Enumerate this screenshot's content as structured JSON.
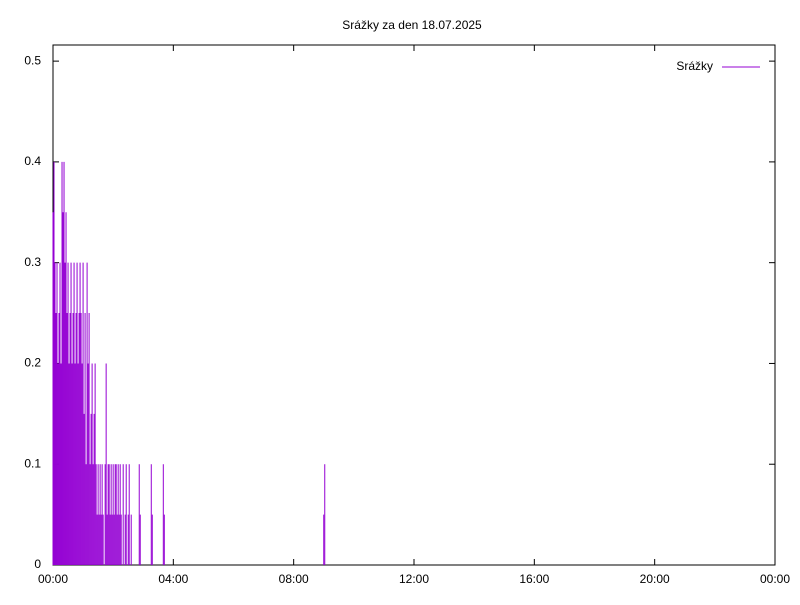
{
  "chart_data": {
    "type": "impulse",
    "title": "Srážky za den 18.07.2025",
    "x": [
      0,
      2,
      4,
      6,
      8,
      10,
      12,
      14,
      16,
      18,
      20,
      22,
      24,
      26,
      28,
      30,
      32,
      34,
      36,
      38,
      40,
      42,
      44,
      46,
      48,
      50,
      52,
      54,
      56,
      58,
      60,
      62,
      64,
      66,
      68,
      70,
      72,
      74,
      76,
      78,
      80,
      82,
      84,
      86,
      88,
      90,
      92,
      94,
      96,
      98,
      100,
      104,
      106,
      108,
      110,
      112,
      114,
      116,
      118,
      120,
      122,
      124,
      126,
      128,
      130,
      132,
      134,
      136,
      140,
      144,
      146,
      150,
      152,
      156,
      172,
      174,
      196,
      198,
      220,
      222,
      540,
      542
    ],
    "series": [
      {
        "name": "Srážky",
        "color": "#9400d3",
        "values": [
          0.35,
          0.4,
          0.3,
          0.25,
          0.3,
          0.2,
          0.25,
          0.3,
          0.2,
          0.4,
          0.35,
          0.4,
          0.3,
          0.35,
          0.25,
          0.3,
          0.2,
          0.25,
          0.3,
          0.2,
          0.25,
          0.3,
          0.2,
          0.25,
          0.3,
          0.2,
          0.25,
          0.3,
          0.25,
          0.2,
          0.3,
          0.15,
          0.25,
          0.1,
          0.3,
          0.2,
          0.25,
          0.1,
          0.15,
          0.2,
          0.1,
          0.15,
          0.2,
          0.1,
          0.05,
          0.1,
          0.05,
          0.1,
          0.05,
          0.1,
          0.05,
          0.1,
          0.2,
          0.05,
          0.1,
          0.1,
          0.05,
          0.1,
          0.05,
          0.1,
          0.05,
          0.1,
          0.1,
          0.05,
          0.1,
          0.05,
          0.1,
          0.05,
          0.1,
          0.05,
          0.1,
          0.05,
          0.1,
          0.05,
          0.1,
          0.05,
          0.1,
          0.05,
          0.1,
          0.05,
          0.05,
          0.1
        ]
      }
    ],
    "xlim": [
      0,
      1440
    ],
    "xticks": [
      {
        "value": 0,
        "label": "00:00"
      },
      {
        "value": 240,
        "label": "04:00"
      },
      {
        "value": 480,
        "label": "08:00"
      },
      {
        "value": 720,
        "label": "12:00"
      },
      {
        "value": 960,
        "label": "16:00"
      },
      {
        "value": 1200,
        "label": "20:00"
      },
      {
        "value": 1440,
        "label": "00:00"
      }
    ],
    "ylim": [
      0,
      0.516
    ],
    "yticks": [
      0,
      0.1,
      0.2,
      0.3,
      0.4,
      0.5
    ],
    "legend": "top-right"
  }
}
